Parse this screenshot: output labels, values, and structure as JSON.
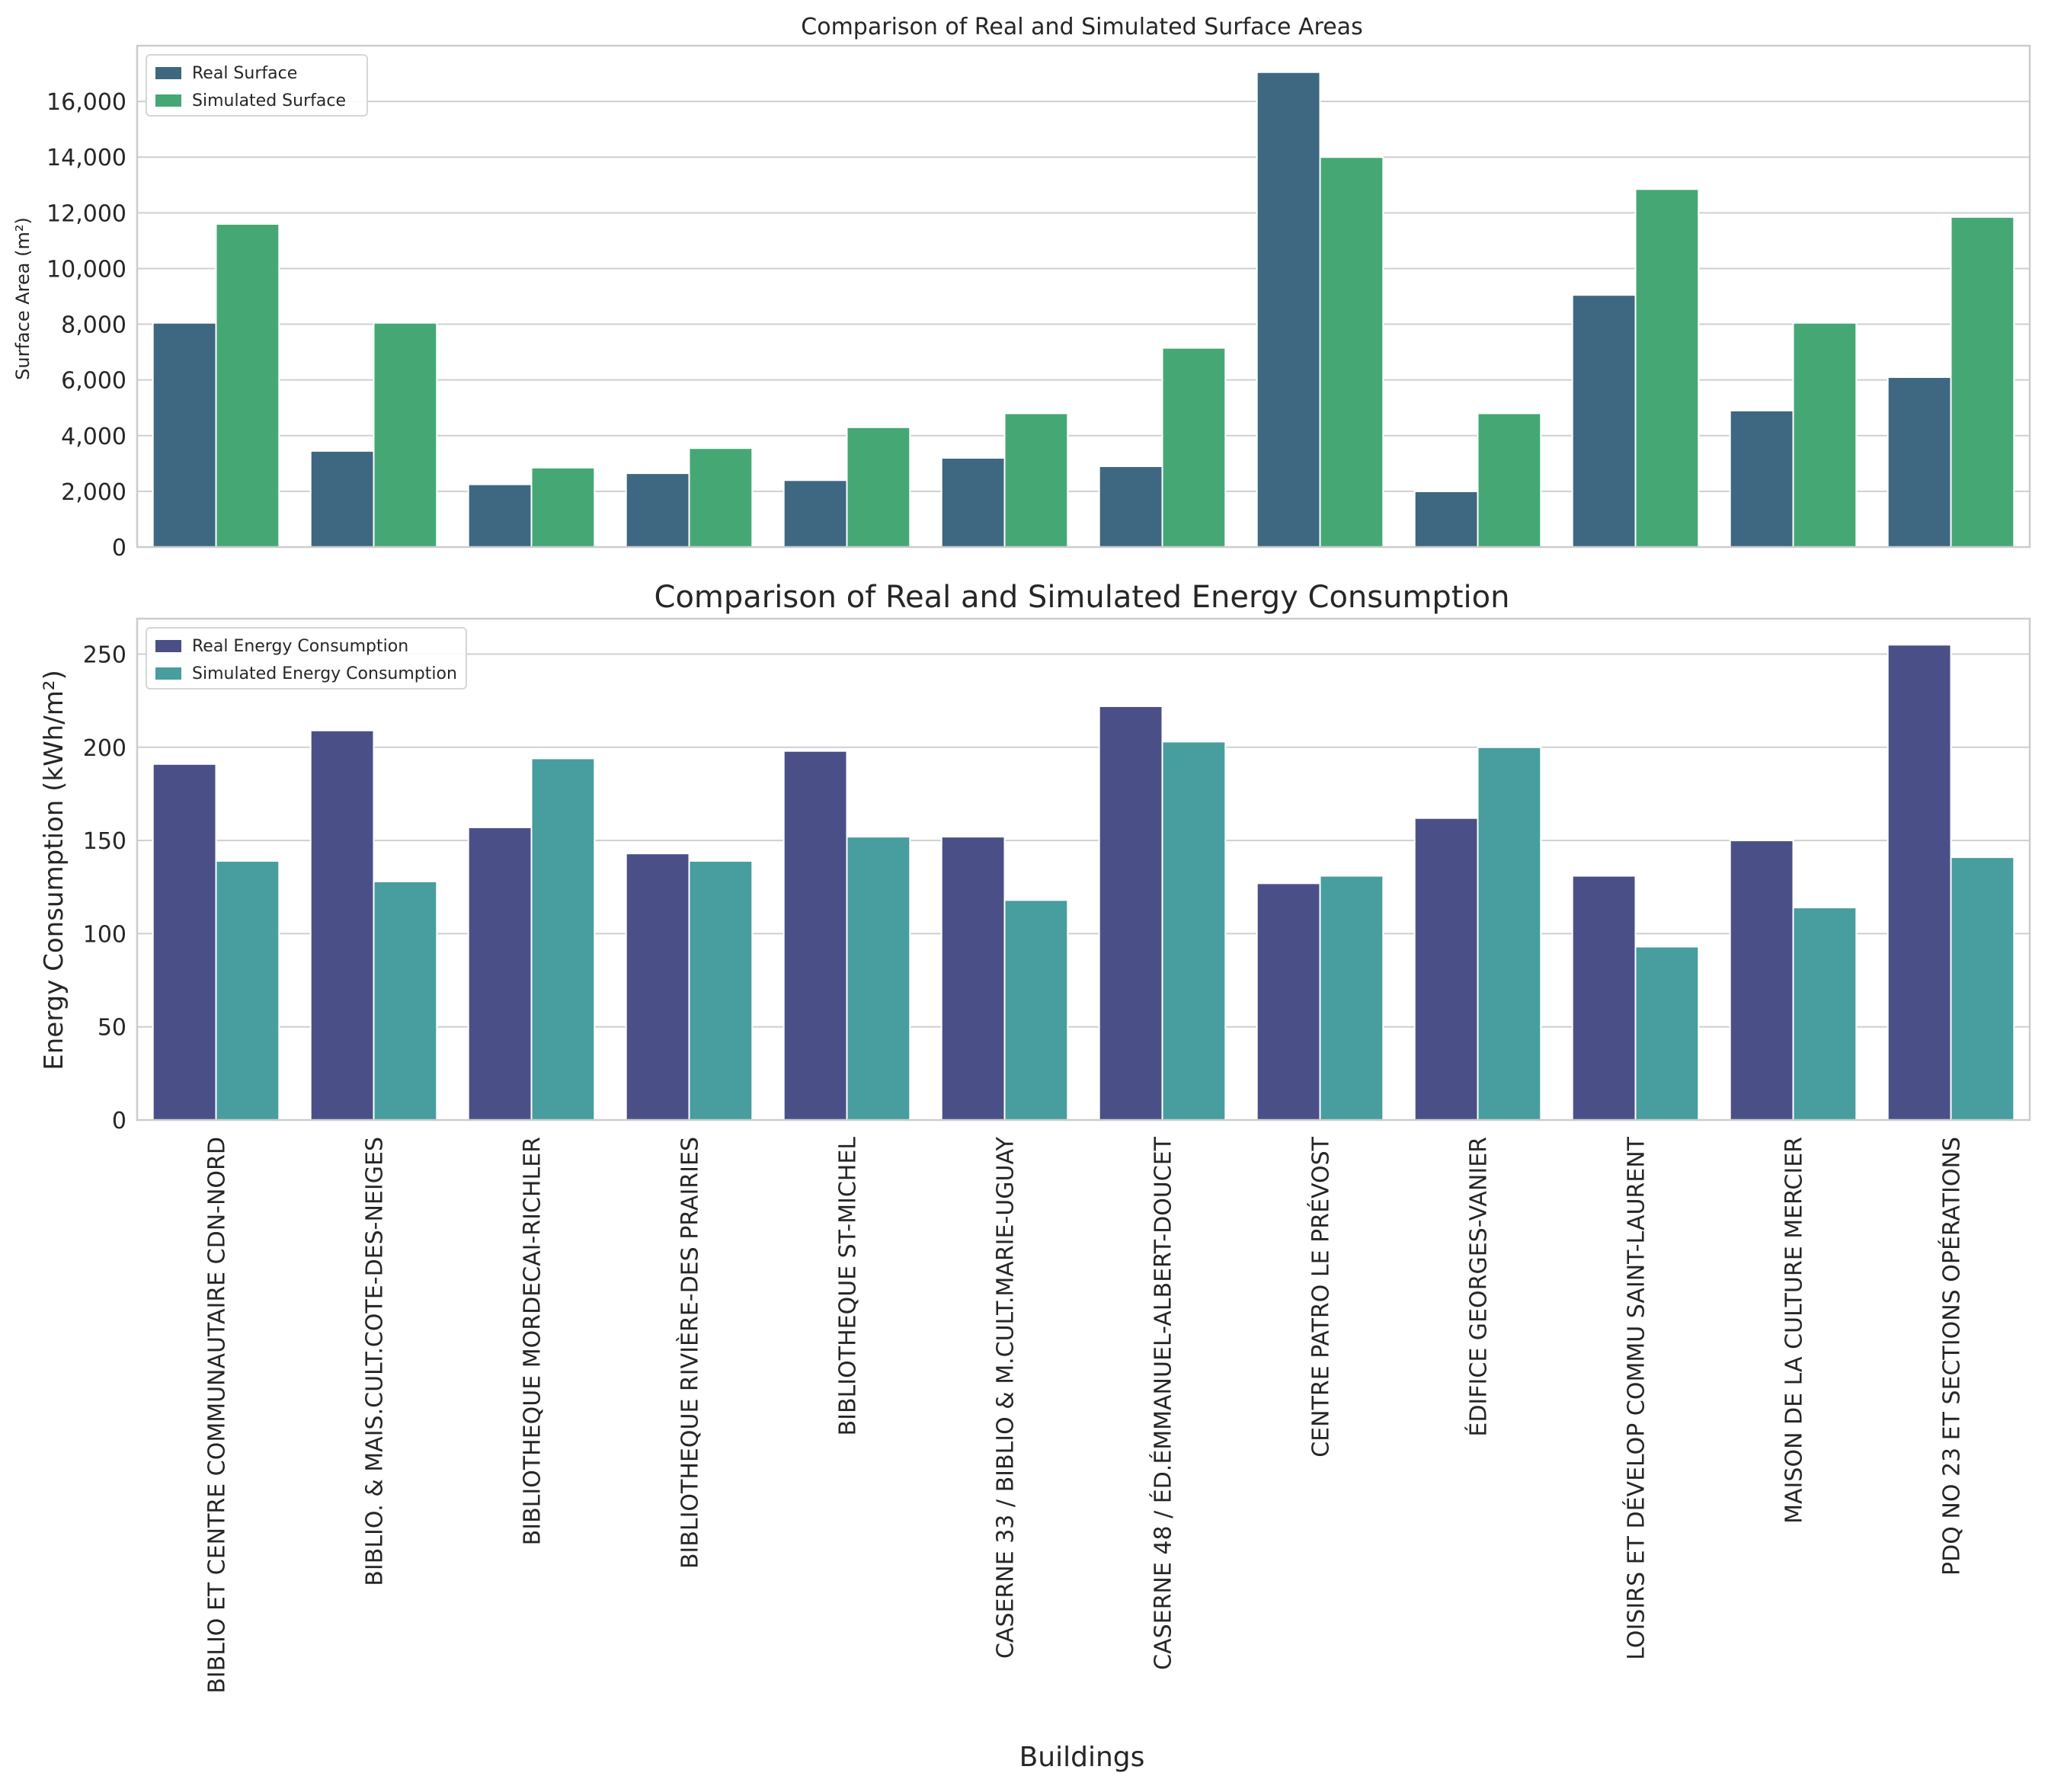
{
  "chart_data": [
    {
      "type": "bar",
      "title": "Comparison of Real and Simulated Surface Areas",
      "xlabel": "",
      "ylabel": "Surface Area (m²)",
      "ylim": [
        0,
        18000
      ],
      "yticks": [
        0,
        2000,
        4000,
        6000,
        8000,
        10000,
        12000,
        14000,
        16000
      ],
      "ytick_labels": [
        "0",
        "2,000",
        "4,000",
        "6,000",
        "8,000",
        "10,000",
        "12,000",
        "14,000",
        "16,000"
      ],
      "grid": true,
      "legend_position": "top-left",
      "categories": [
        "BIBLIO ET CENTRE COMMUNAUTAIRE CDN-NORD",
        "BIBLIO. & MAIS.CULT.COTE-DES-NEIGES",
        "BIBLIOTHEQUE MORDECAI-RICHLER",
        "BIBLIOTHEQUE RIVIÈRE-DES PRAIRIES",
        "BIBLIOTHEQUE ST-MICHEL",
        "CASERNE 33 / BIBLIO & M.CULT.MARIE-UGUAY",
        "CASERNE 48 / ÉD.ÉMMANUEL-ALBERT-DOUCET",
        "CENTRE PATRO LE PRÉVOST",
        "ÉDIFICE GEORGES-VANIER",
        "LOISIRS ET DÉVELOP COMMU SAINT-LAURENT",
        "MAISON DE LA CULTURE MERCIER",
        "PDQ NO 23 ET SECTIONS OPÉRATIONS"
      ],
      "series": [
        {
          "name": "Real Surface",
          "color": "#3e6782",
          "values": [
            8050,
            3450,
            2250,
            2650,
            2400,
            3200,
            2900,
            17050,
            2000,
            9050,
            4900,
            6100
          ]
        },
        {
          "name": "Simulated Surface",
          "color": "#45a874",
          "values": [
            11600,
            8050,
            2850,
            3550,
            4300,
            4800,
            7150,
            14000,
            4800,
            12850,
            8050,
            11850
          ]
        }
      ]
    },
    {
      "type": "bar",
      "title": "Comparison of Real and Simulated Energy Consumption",
      "xlabel": "Buildings",
      "ylabel": "Energy Consumption (kWh/m²)",
      "ylim": [
        0,
        269
      ],
      "yticks": [
        0,
        50,
        100,
        150,
        200,
        250
      ],
      "ytick_labels": [
        "0",
        "50",
        "100",
        "150",
        "200",
        "250"
      ],
      "grid": true,
      "legend_position": "top-left",
      "categories": [
        "BIBLIO ET CENTRE COMMUNAUTAIRE CDN-NORD",
        "BIBLIO. & MAIS.CULT.COTE-DES-NEIGES",
        "BIBLIOTHEQUE MORDECAI-RICHLER",
        "BIBLIOTHEQUE RIVIÈRE-DES PRAIRIES",
        "BIBLIOTHEQUE ST-MICHEL",
        "CASERNE 33 / BIBLIO & M.CULT.MARIE-UGUAY",
        "CASERNE 48 / ÉD.ÉMMANUEL-ALBERT-DOUCET",
        "CENTRE PATRO LE PRÉVOST",
        "ÉDIFICE GEORGES-VANIER",
        "LOISIRS ET DÉVELOP COMMU SAINT-LAURENT",
        "MAISON DE LA CULTURE MERCIER",
        "PDQ NO 23 ET SECTIONS OPÉRATIONS"
      ],
      "series": [
        {
          "name": "Real Energy Consumption",
          "color": "#4a5087",
          "values": [
            191,
            209,
            157,
            143,
            198,
            152,
            222,
            127,
            162,
            131,
            150,
            255
          ]
        },
        {
          "name": "Simulated Energy Consumption",
          "color": "#489d9f",
          "values": [
            139,
            128,
            194,
            139,
            152,
            118,
            203,
            131,
            200,
            93,
            114,
            141
          ]
        }
      ]
    }
  ]
}
